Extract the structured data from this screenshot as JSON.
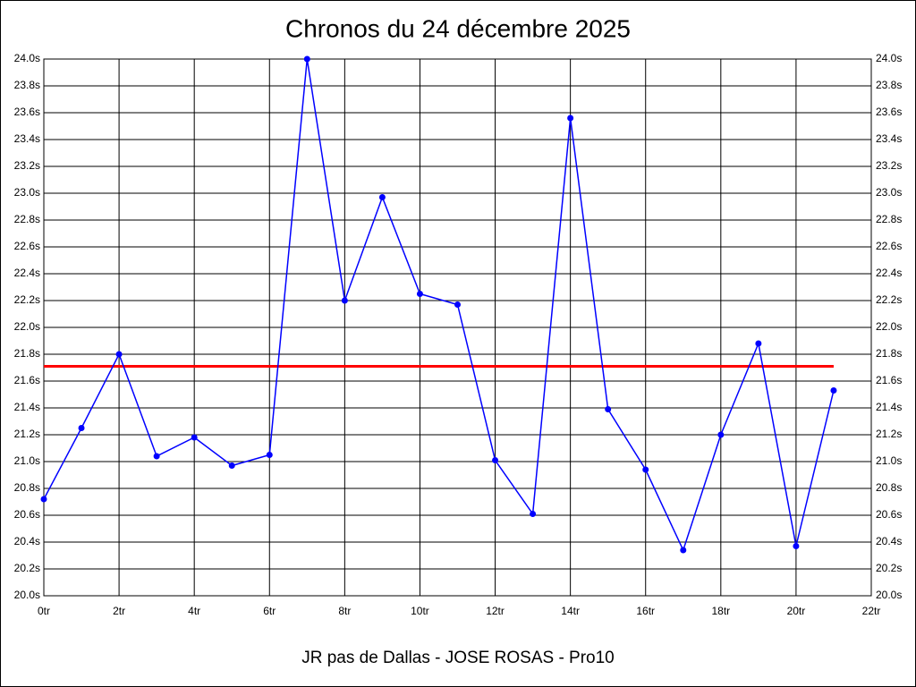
{
  "chart_data": {
    "type": "line",
    "title": "Chronos du 24 décembre 2025",
    "footer": "JR pas de Dallas - JOSE ROSAS - Pro10",
    "x": [
      0,
      1,
      2,
      3,
      4,
      5,
      6,
      7,
      8,
      9,
      10,
      11,
      12,
      13,
      14,
      15,
      16,
      17,
      18,
      19,
      20,
      21
    ],
    "series": [
      {
        "color": "#0000ff",
        "values": [
          20.72,
          21.25,
          21.8,
          21.04,
          21.18,
          20.97,
          21.05,
          24.0,
          22.2,
          22.97,
          22.25,
          22.17,
          21.01,
          20.61,
          23.56,
          21.39,
          20.94,
          20.34,
          21.2,
          21.88,
          20.37,
          21.53
        ]
      }
    ],
    "reference_line": {
      "value": 21.71,
      "color": "#ff0000"
    },
    "xlim": [
      0,
      22
    ],
    "xticks": [
      {
        "value": 0,
        "label": "0tr"
      },
      {
        "value": 2,
        "label": "2tr"
      },
      {
        "value": 4,
        "label": "4tr"
      },
      {
        "value": 6,
        "label": "6tr"
      },
      {
        "value": 8,
        "label": "8tr"
      },
      {
        "value": 10,
        "label": "10tr"
      },
      {
        "value": 12,
        "label": "12tr"
      },
      {
        "value": 14,
        "label": "14tr"
      },
      {
        "value": 16,
        "label": "16tr"
      },
      {
        "value": 18,
        "label": "18tr"
      },
      {
        "value": 20,
        "label": "20tr"
      },
      {
        "value": 22,
        "label": "22tr"
      }
    ],
    "ylim": [
      20.0,
      24.0
    ],
    "yticks": [
      {
        "value": 20.0,
        "label": "20.0s"
      },
      {
        "value": 20.2,
        "label": "20.2s"
      },
      {
        "value": 20.4,
        "label": "20.4s"
      },
      {
        "value": 20.6,
        "label": "20.6s"
      },
      {
        "value": 20.8,
        "label": "20.8s"
      },
      {
        "value": 21.0,
        "label": "21.0s"
      },
      {
        "value": 21.2,
        "label": "21.2s"
      },
      {
        "value": 21.4,
        "label": "21.4s"
      },
      {
        "value": 21.6,
        "label": "21.6s"
      },
      {
        "value": 21.8,
        "label": "21.8s"
      },
      {
        "value": 22.0,
        "label": "22.0s"
      },
      {
        "value": 22.2,
        "label": "22.2s"
      },
      {
        "value": 22.4,
        "label": "22.4s"
      },
      {
        "value": 22.6,
        "label": "22.6s"
      },
      {
        "value": 22.8,
        "label": "22.8s"
      },
      {
        "value": 23.0,
        "label": "23.0s"
      },
      {
        "value": 23.2,
        "label": "23.2s"
      },
      {
        "value": 23.4,
        "label": "23.4s"
      },
      {
        "value": 23.6,
        "label": "23.6s"
      },
      {
        "value": 23.8,
        "label": "23.8s"
      },
      {
        "value": 24.0,
        "label": "24.0s"
      }
    ],
    "grid": true
  }
}
